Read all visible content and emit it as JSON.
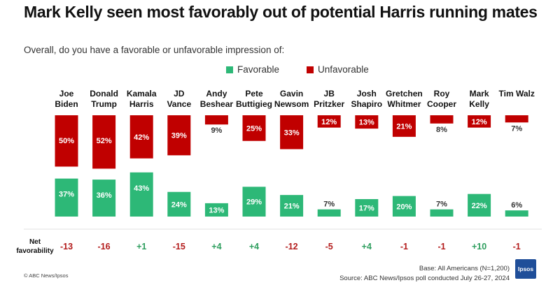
{
  "header": {
    "title": "Mark Kelly seen most favorably out of potential Harris running mates",
    "subtitle": "Overall, do you have a favorable or unfavorable impression of:"
  },
  "colors": {
    "favorable": "#2db877",
    "unfavorable": "#c00000",
    "net_positive": "#2e9e5e",
    "net_negative": "#b31b1b"
  },
  "net_label": "Net favorability",
  "chart_data": {
    "type": "bar",
    "categories": [
      "Joe Biden",
      "Donald Trump",
      "Kamala Harris",
      "JD Vance",
      "Andy Beshear",
      "Pete Buttigieg",
      "Gavin Newsom",
      "JB Pritzker",
      "Josh Shapiro",
      "Gretchen Whitmer",
      "Roy Cooper",
      "Mark Kelly",
      "Tim Walz"
    ],
    "category_lines": [
      [
        "Joe",
        "Biden"
      ],
      [
        "Donald",
        "Trump"
      ],
      [
        "Kamala",
        "Harris"
      ],
      [
        "JD",
        "Vance"
      ],
      [
        "Andy",
        "Beshear"
      ],
      [
        "Pete",
        "Buttigieg"
      ],
      [
        "Gavin",
        "Newsom"
      ],
      [
        "JB",
        "Pritzker"
      ],
      [
        "Josh",
        "Shapiro"
      ],
      [
        "Gretchen",
        "Whitmer"
      ],
      [
        "Roy",
        "Cooper"
      ],
      [
        "Mark",
        "Kelly"
      ],
      [
        "Tim Walz"
      ]
    ],
    "series": [
      {
        "name": "Favorable",
        "values": [
          37,
          36,
          43,
          24,
          13,
          29,
          21,
          7,
          17,
          20,
          7,
          22,
          6
        ]
      },
      {
        "name": "Unfavorable",
        "values": [
          50,
          52,
          42,
          39,
          9,
          25,
          33,
          12,
          13,
          21,
          8,
          12,
          7
        ]
      }
    ],
    "value_labels": {
      "favorable": [
        "37%",
        "36%",
        "43%",
        "24%",
        "13%",
        "29%",
        "21%",
        "7%",
        "17%",
        "20%",
        "7%",
        "22%",
        "6%"
      ],
      "unfavorable": [
        "50%",
        "52%",
        "42%",
        "39%",
        "9%",
        "25%",
        "33%",
        "12%",
        "13%",
        "21%",
        "8%",
        "12%",
        "7%"
      ]
    },
    "net_favorability": [
      "-13",
      "-16",
      "+1",
      "-15",
      "+4",
      "+4",
      "-12",
      "-5",
      "+4",
      "-1",
      "-1",
      "+10",
      "-1"
    ],
    "legend": [
      "Favorable",
      "Unfavorable"
    ],
    "legend_position": "top-center",
    "grid": false
  },
  "footer": {
    "credit": "© ABC News/Ipsos",
    "base": "Base: All Americans (N=1,200)",
    "source": "Source: ABC News/Ipsos poll conducted July 26-27, 2024",
    "logo_text": "Ipsos"
  }
}
